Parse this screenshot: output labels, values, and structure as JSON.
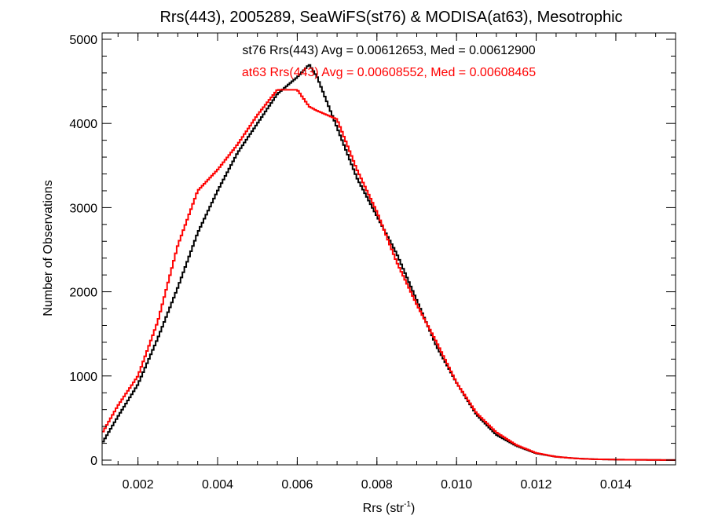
{
  "chart_data": {
    "type": "histogram",
    "title": "Rrs(443), 2005289, SeaWiFS(st76) & MODISA(at63), Mesotrophic",
    "xlabel_main": "Rrs (str",
    "xlabel_sup": "-1",
    "xlabel_close": ")",
    "ylabel": "Number of Observations",
    "xlim": [
      0.0011,
      0.0155
    ],
    "ylim": [
      0,
      5000
    ],
    "grid": false,
    "x_ticks": [
      0.002,
      0.004,
      0.006,
      0.008,
      0.01,
      0.012,
      0.014
    ],
    "x_tick_labels": [
      "0.002",
      "0.004",
      "0.006",
      "0.008",
      "0.010",
      "0.012",
      "0.014"
    ],
    "y_ticks": [
      0,
      1000,
      2000,
      3000,
      4000,
      5000
    ],
    "y_tick_labels": [
      "0",
      "1000",
      "2000",
      "3000",
      "4000",
      "5000"
    ],
    "annotations": [
      {
        "text": "st76 Rrs(443) Avg = 0.00612653, Med = 0.00612900",
        "color": "#000000"
      },
      {
        "text": "at63 Rrs(443) Avg = 0.00608552, Med = 0.00608465",
        "color": "#ff0000"
      }
    ],
    "series": [
      {
        "color": "#000000",
        "x": [
          0.0011,
          0.0015,
          0.002,
          0.0025,
          0.003,
          0.0035,
          0.004,
          0.0045,
          0.005,
          0.0055,
          0.006,
          0.0063,
          0.0065,
          0.007,
          0.0075,
          0.008,
          0.0085,
          0.009,
          0.0095,
          0.01,
          0.0105,
          0.011,
          0.0115,
          0.012,
          0.0125,
          0.013,
          0.0135,
          0.014,
          0.0145,
          0.015,
          0.0155
        ],
        "y": [
          200,
          520,
          900,
          1450,
          2050,
          2700,
          3200,
          3650,
          4000,
          4350,
          4550,
          4700,
          4550,
          3950,
          3350,
          2900,
          2450,
          1900,
          1350,
          920,
          540,
          300,
          170,
          80,
          40,
          20,
          10,
          6,
          4,
          2,
          1
        ]
      },
      {
        "color": "#ff0000",
        "x": [
          0.0011,
          0.0015,
          0.002,
          0.0025,
          0.003,
          0.0035,
          0.004,
          0.0045,
          0.005,
          0.0055,
          0.006,
          0.0063,
          0.0065,
          0.007,
          0.0075,
          0.008,
          0.0085,
          0.009,
          0.0095,
          0.01,
          0.0105,
          0.011,
          0.0115,
          0.012,
          0.0125,
          0.013,
          0.0135,
          0.014,
          0.0145,
          0.015,
          0.0155
        ],
        "y": [
          320,
          650,
          1000,
          1650,
          2550,
          3200,
          3450,
          3750,
          4100,
          4400,
          4400,
          4200,
          4150,
          4050,
          3450,
          2950,
          2350,
          1850,
          1400,
          920,
          560,
          330,
          180,
          85,
          40,
          20,
          10,
          6,
          4,
          2,
          1
        ]
      }
    ]
  }
}
